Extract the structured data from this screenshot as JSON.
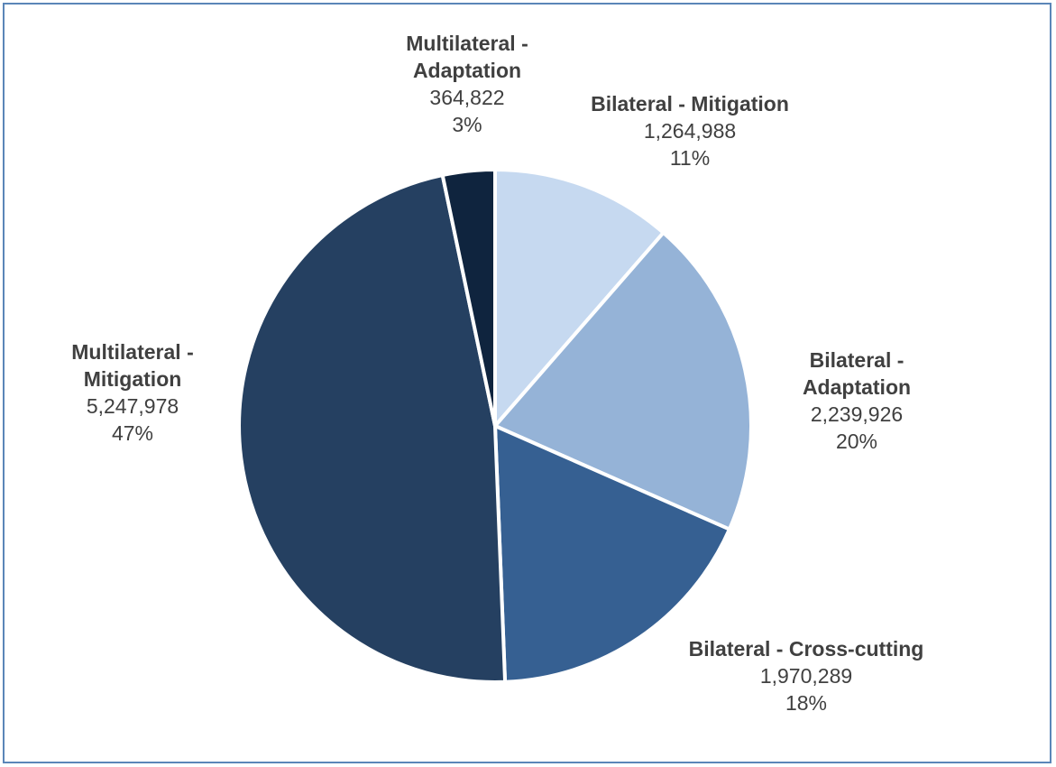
{
  "chart_data": {
    "type": "pie",
    "title": "",
    "start_angle_deg": 0,
    "direction": "clockwise",
    "slices": [
      {
        "label": "Bilateral - Mitigation",
        "value": 1264988,
        "value_text": "1,264,988",
        "percent_text": "11%",
        "color": "#c6d9f0"
      },
      {
        "label": "Bilateral - Adaptation",
        "value": 2239926,
        "value_text": "2,239,926",
        "percent_text": "20%",
        "color": "#95b3d7"
      },
      {
        "label": "Bilateral - Cross-cutting",
        "value": 1970289,
        "value_text": "1,970,289",
        "percent_text": "18%",
        "color": "#366092"
      },
      {
        "label": "Multilateral - Mitigation",
        "value": 5247978,
        "value_text": "5,247,978",
        "percent_text": "47%",
        "color": "#254061"
      },
      {
        "label": "Multilateral - Adaptation",
        "value": 364822,
        "value_text": "364,822",
        "percent_text": "3%",
        "color": "#0f243e"
      }
    ],
    "data_labels": "outside",
    "legend": "none"
  }
}
